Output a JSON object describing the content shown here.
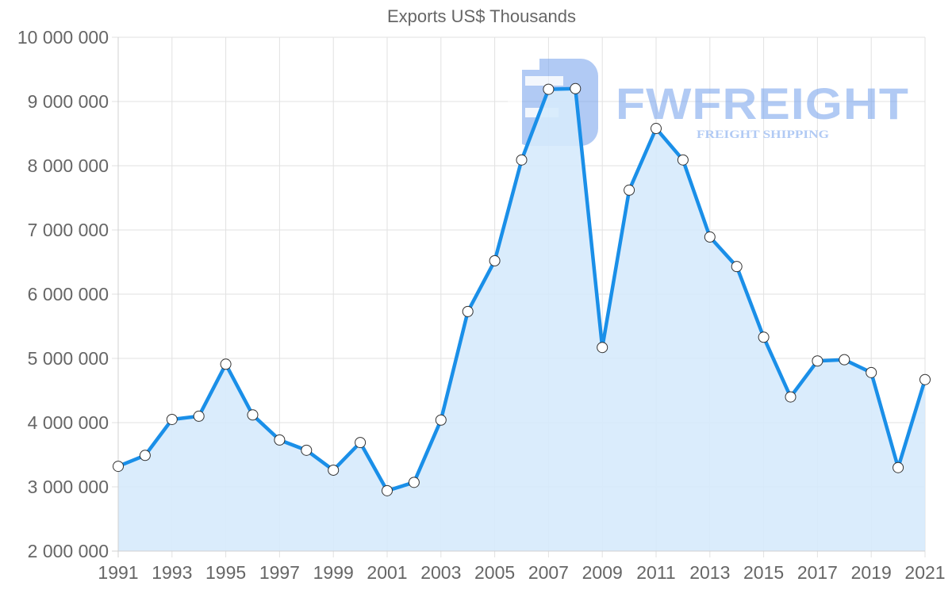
{
  "chart_data": {
    "type": "area",
    "title": "Exports US$ Thousands",
    "xlabel": "",
    "ylabel": "",
    "ylim": [
      2000000,
      10000000
    ],
    "y_ticks": [
      2000000,
      3000000,
      4000000,
      5000000,
      6000000,
      7000000,
      8000000,
      9000000,
      10000000
    ],
    "y_tick_labels": [
      "2 000 000",
      "3 000 000",
      "4 000 000",
      "5 000 000",
      "6 000 000",
      "7 000 000",
      "8 000 000",
      "9 000 000",
      "10 000 000"
    ],
    "x_tick_labels": [
      "1991",
      "1993",
      "1995",
      "1997",
      "1999",
      "2001",
      "2003",
      "2005",
      "2007",
      "2009",
      "2011",
      "2013",
      "2015",
      "2017",
      "2019",
      "2021"
    ],
    "grid": true,
    "legend": "none",
    "categories": [
      "1991",
      "1992",
      "1993",
      "1994",
      "1995",
      "1996",
      "1997",
      "1998",
      "1999",
      "2000",
      "2001",
      "2002",
      "2003",
      "2004",
      "2005",
      "2006",
      "2007",
      "2008",
      "2009",
      "2010",
      "2011",
      "2012",
      "2013",
      "2014",
      "2015",
      "2016",
      "2017",
      "2018",
      "2019",
      "2020",
      "2021"
    ],
    "series": [
      {
        "name": "Exports US$ Thousands",
        "values": [
          3320000,
          3490000,
          4050000,
          4100000,
          4910000,
          4120000,
          3730000,
          3570000,
          3260000,
          3690000,
          2940000,
          3070000,
          4040000,
          5730000,
          6520000,
          8090000,
          9190000,
          9200000,
          5170000,
          7620000,
          8580000,
          8090000,
          6890000,
          6430000,
          5330000,
          4400000,
          4960000,
          4980000,
          4780000,
          3300000,
          4670000
        ]
      }
    ],
    "colors": {
      "line": "#1a8fe8",
      "fill": "#d6eafc",
      "point_fill": "#ffffff",
      "point_stroke": "#333333",
      "grid": "#e2e2e2",
      "tick_text": "#666666"
    }
  },
  "watermark": {
    "brand": "FWFREIGHT",
    "tagline": "FREIGHT SHIPPING",
    "color": "#7ea8ee"
  }
}
